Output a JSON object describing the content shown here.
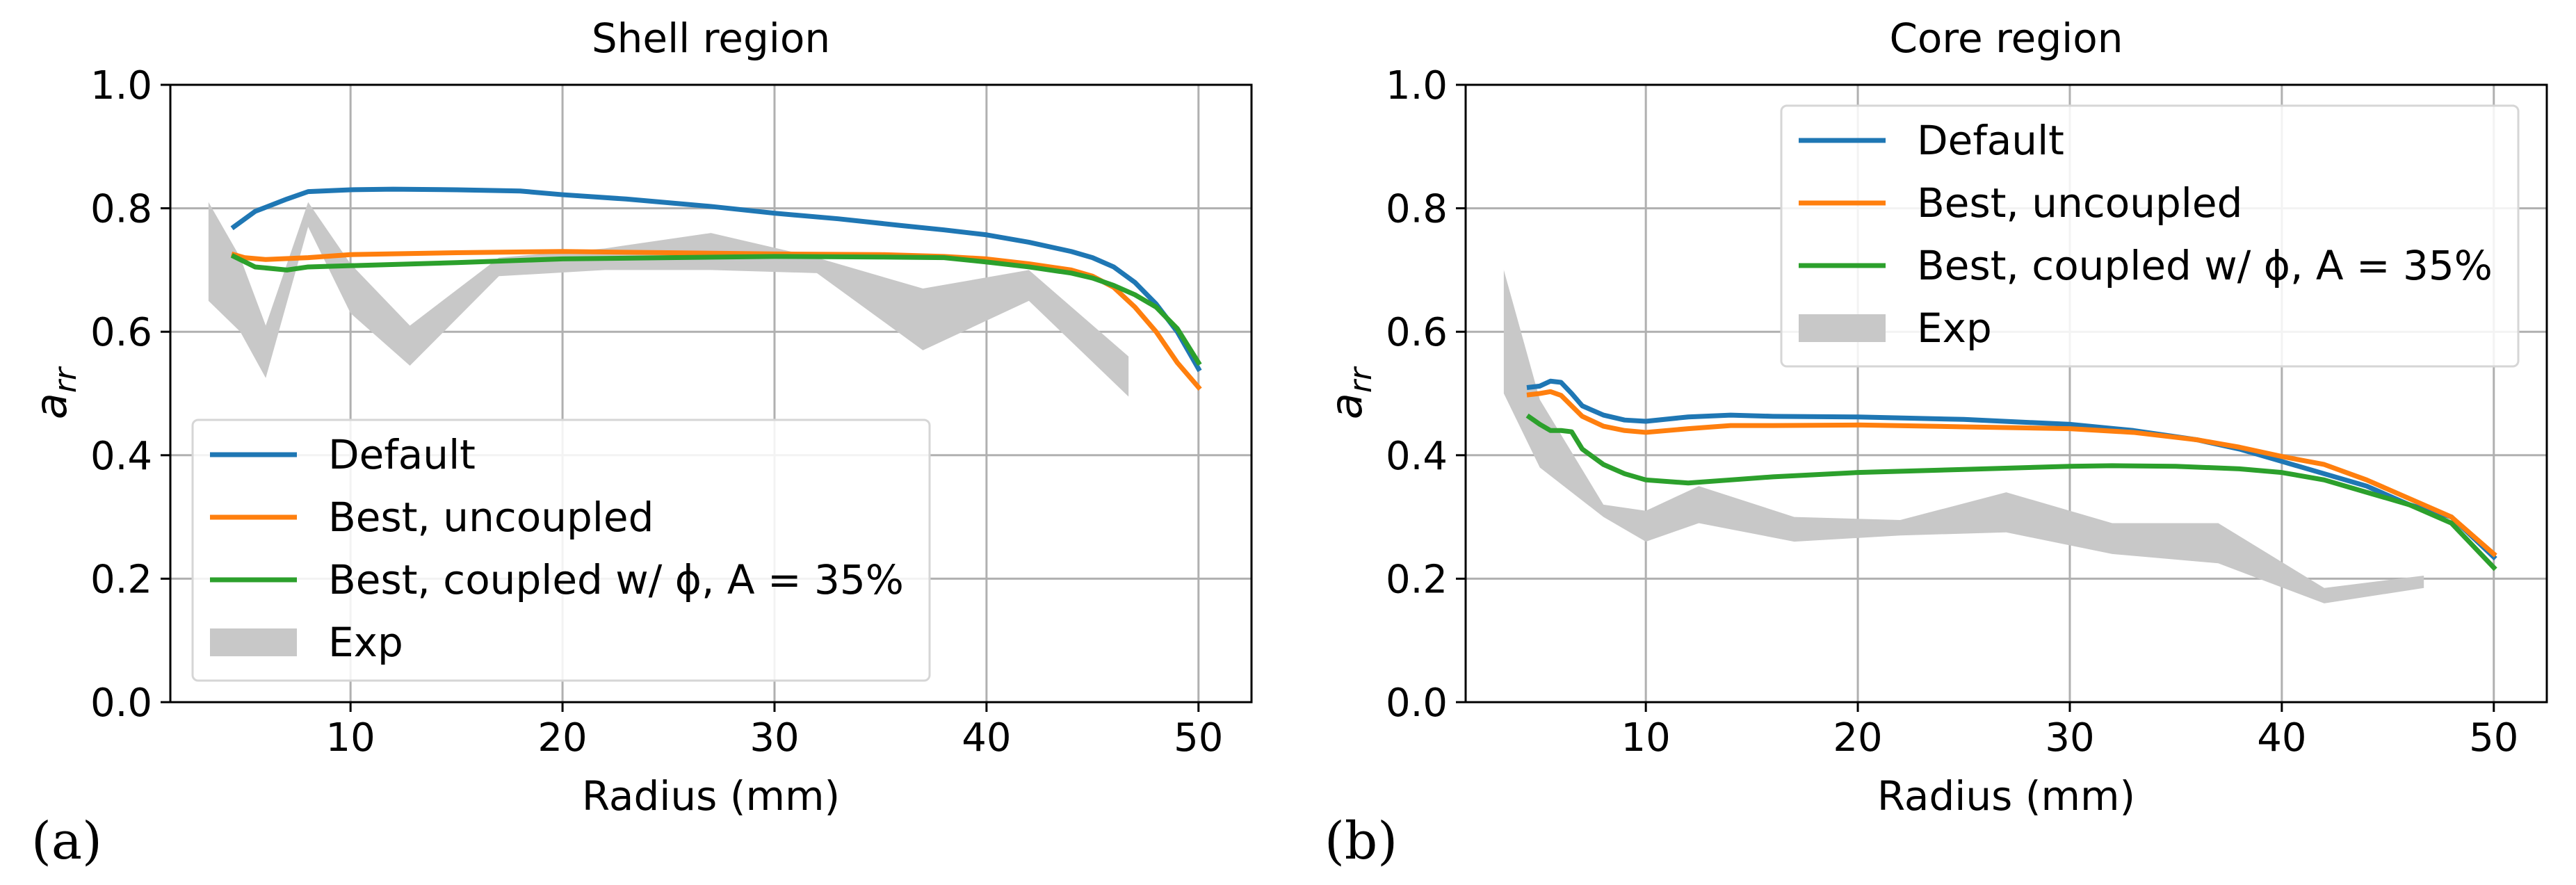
{
  "colors": {
    "default": "#1f77b4",
    "uncoupled": "#ff7f0e",
    "coupled": "#2ca02c",
    "exp": "#c8c8c8",
    "grid": "#b0b0b0"
  },
  "chart_data": [
    {
      "type": "line",
      "panel_label": "(a)",
      "title": "Shell region",
      "xlabel": "Radius (mm)",
      "ylabel_main": "a",
      "ylabel_sub": "rr",
      "xlim": [
        1.5,
        52.5
      ],
      "ylim": [
        0.0,
        1.0
      ],
      "xticks": [
        10,
        20,
        30,
        40,
        50
      ],
      "xtick_labels": [
        "10",
        "20",
        "30",
        "40",
        "50"
      ],
      "yticks": [
        0.0,
        0.2,
        0.4,
        0.6,
        0.8,
        1.0
      ],
      "ytick_labels": [
        "0.0",
        "0.2",
        "0.4",
        "0.6",
        "0.8",
        "1.0"
      ],
      "grid": true,
      "legend": {
        "position": "lower-left",
        "entries": [
          "Default",
          "Best, uncoupled",
          "Best, coupled w/ ϕ, A = 35%",
          "Exp"
        ]
      },
      "series": [
        {
          "name": "Default",
          "x": [
            4.5,
            5.5,
            7,
            8,
            10,
            12,
            15,
            18,
            20,
            23,
            27,
            30,
            33,
            36,
            38,
            40,
            42,
            44,
            45,
            46,
            47,
            48,
            49,
            50
          ],
          "y": [
            0.77,
            0.795,
            0.815,
            0.827,
            0.83,
            0.831,
            0.83,
            0.828,
            0.822,
            0.815,
            0.803,
            0.792,
            0.783,
            0.772,
            0.765,
            0.757,
            0.745,
            0.73,
            0.72,
            0.705,
            0.68,
            0.645,
            0.6,
            0.54
          ]
        },
        {
          "name": "Best, uncoupled",
          "x": [
            4.5,
            5,
            6,
            8,
            10,
            15,
            20,
            25,
            30,
            35,
            38,
            40,
            42,
            44,
            45,
            46,
            47,
            48,
            49,
            50
          ],
          "y": [
            0.725,
            0.72,
            0.717,
            0.72,
            0.725,
            0.728,
            0.73,
            0.728,
            0.726,
            0.725,
            0.722,
            0.718,
            0.71,
            0.7,
            0.69,
            0.672,
            0.64,
            0.6,
            0.55,
            0.51
          ]
        },
        {
          "name": "Best, coupled w/ ϕ, A = 35%",
          "x": [
            4.5,
            5.5,
            7,
            8,
            10,
            15,
            20,
            25,
            30,
            35,
            38,
            40,
            42,
            44,
            45,
            46,
            47,
            48,
            49,
            50
          ],
          "y": [
            0.722,
            0.705,
            0.7,
            0.705,
            0.707,
            0.712,
            0.718,
            0.72,
            0.722,
            0.721,
            0.72,
            0.713,
            0.705,
            0.695,
            0.687,
            0.675,
            0.66,
            0.64,
            0.605,
            0.55
          ]
        },
        {
          "name": "Exp",
          "type": "band",
          "x": [
            3.3,
            4.8,
            6,
            8,
            10,
            12.8,
            17,
            22,
            27,
            32,
            37,
            42,
            46.7
          ],
          "lower": [
            0.65,
            0.6,
            0.525,
            0.77,
            0.63,
            0.545,
            0.69,
            0.7,
            0.7,
            0.695,
            0.57,
            0.65,
            0.495
          ],
          "upper": [
            0.81,
            0.72,
            0.61,
            0.81,
            0.71,
            0.61,
            0.72,
            0.735,
            0.76,
            0.72,
            0.67,
            0.7,
            0.56
          ]
        }
      ]
    },
    {
      "type": "line",
      "panel_label": "(b)",
      "title": "Core region",
      "xlabel": "Radius (mm)",
      "ylabel_main": "a",
      "ylabel_sub": "rr",
      "xlim": [
        1.5,
        52.5
      ],
      "ylim": [
        0.0,
        1.0
      ],
      "xticks": [
        10,
        20,
        30,
        40,
        50
      ],
      "xtick_labels": [
        "10",
        "20",
        "30",
        "40",
        "50"
      ],
      "yticks": [
        0.0,
        0.2,
        0.4,
        0.6,
        0.8,
        1.0
      ],
      "ytick_labels": [
        "0.0",
        "0.2",
        "0.4",
        "0.6",
        "0.8",
        "1.0"
      ],
      "grid": true,
      "legend": {
        "position": "upper-right",
        "entries": [
          "Default",
          "Best, uncoupled",
          "Best, coupled w/ ϕ, A = 35%",
          "Exp"
        ]
      },
      "series": [
        {
          "name": "Default",
          "x": [
            4.5,
            5,
            5.5,
            6,
            6.5,
            7,
            8,
            9,
            10,
            12,
            14,
            16,
            20,
            25,
            30,
            33,
            36,
            38,
            40,
            42,
            44,
            46,
            48,
            50
          ],
          "y": [
            0.51,
            0.512,
            0.52,
            0.518,
            0.5,
            0.48,
            0.465,
            0.457,
            0.455,
            0.462,
            0.465,
            0.463,
            0.462,
            0.458,
            0.45,
            0.44,
            0.425,
            0.41,
            0.39,
            0.37,
            0.35,
            0.32,
            0.3,
            0.235
          ]
        },
        {
          "name": "Best, uncoupled",
          "x": [
            4.5,
            5,
            5.5,
            6,
            6.5,
            7,
            8,
            9,
            10,
            12,
            14,
            16,
            20,
            25,
            30,
            33,
            36,
            38,
            40,
            42,
            44,
            46,
            48,
            50
          ],
          "y": [
            0.498,
            0.5,
            0.503,
            0.497,
            0.48,
            0.463,
            0.447,
            0.44,
            0.437,
            0.443,
            0.448,
            0.448,
            0.449,
            0.446,
            0.443,
            0.437,
            0.425,
            0.413,
            0.398,
            0.385,
            0.36,
            0.33,
            0.3,
            0.24
          ]
        },
        {
          "name": "Best, coupled w/ ϕ, A = 35%",
          "x": [
            4.5,
            5,
            5.5,
            6,
            6.5,
            7,
            8,
            9,
            10,
            12,
            14,
            16,
            20,
            25,
            30,
            32,
            35,
            38,
            40,
            42,
            44,
            46,
            48,
            50
          ],
          "y": [
            0.462,
            0.45,
            0.44,
            0.44,
            0.438,
            0.41,
            0.385,
            0.37,
            0.36,
            0.355,
            0.36,
            0.365,
            0.372,
            0.377,
            0.382,
            0.383,
            0.382,
            0.378,
            0.372,
            0.36,
            0.34,
            0.32,
            0.29,
            0.218
          ]
        },
        {
          "name": "Exp",
          "type": "band",
          "x": [
            3.3,
            5,
            8,
            10,
            12.5,
            17,
            22,
            27,
            32,
            37,
            42,
            46.7
          ],
          "lower": [
            0.5,
            0.38,
            0.3,
            0.26,
            0.29,
            0.26,
            0.27,
            0.275,
            0.24,
            0.225,
            0.16,
            0.185
          ],
          "upper": [
            0.7,
            0.49,
            0.32,
            0.31,
            0.35,
            0.3,
            0.295,
            0.34,
            0.29,
            0.29,
            0.185,
            0.205
          ]
        }
      ]
    }
  ]
}
